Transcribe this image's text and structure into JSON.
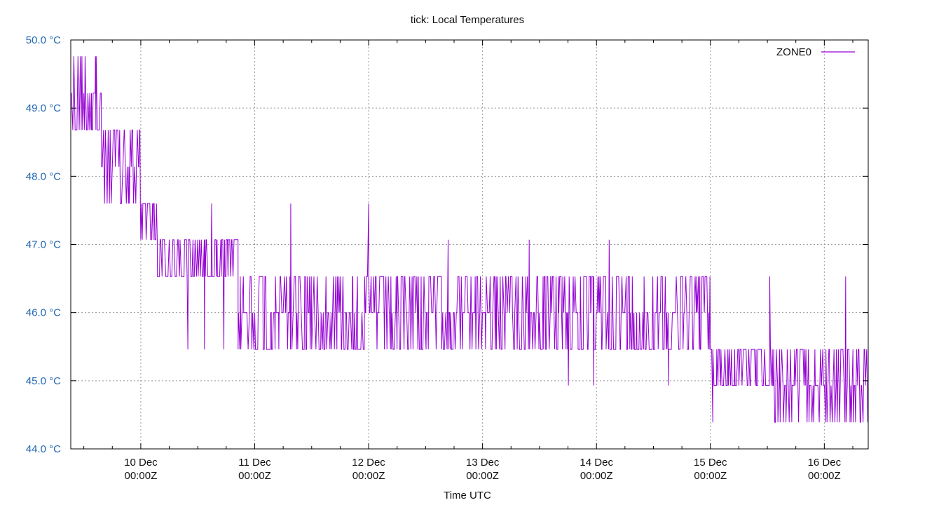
{
  "chart_data": {
    "type": "line",
    "title": "tick: Local Temperatures",
    "xlabel": "Time UTC",
    "ylabel": "",
    "xlim": [
      "9 Dec 09:15",
      "16 Dec 09:15"
    ],
    "ylim": [
      44.0,
      50.0
    ],
    "grid": true,
    "legend_placement": "top-right",
    "y_ticks": [
      "44.0 °C",
      "45.0 °C",
      "46.0 °C",
      "47.0 °C",
      "48.0 °C",
      "49.0 °C",
      "50.0 °C"
    ],
    "y_tick_values": [
      44,
      45,
      46,
      47,
      48,
      49,
      50
    ],
    "x_ticks": [
      {
        "date": "10 Dec",
        "time": "00:00Z"
      },
      {
        "date": "11 Dec",
        "time": "00:00Z"
      },
      {
        "date": "12 Dec",
        "time": "00:00Z"
      },
      {
        "date": "13 Dec",
        "time": "00:00Z"
      },
      {
        "date": "14 Dec",
        "time": "00:00Z"
      },
      {
        "date": "15 Dec",
        "time": "00:00Z"
      },
      {
        "date": "16 Dec",
        "time": "00:00Z"
      }
    ],
    "levels": [
      49.76,
      49.22,
      48.68,
      48.14,
      47.6,
      47.07,
      46.53,
      46.0,
      45.46,
      44.93,
      44.39
    ],
    "series": [
      {
        "name": "ZONE0",
        "color": "#9400d3",
        "bands": [
          {
            "from": "9 Dec 09:15",
            "to": "9 Dec 15:00",
            "low": 48.68,
            "high": 49.76
          },
          {
            "from": "9 Dec 15:00",
            "to": "9 Dec 15:45",
            "low": 48.68,
            "high": 49.22
          },
          {
            "from": "9 Dec 15:45",
            "to": "10 Dec 00:00",
            "low": 47.6,
            "high": 48.68
          },
          {
            "from": "10 Dec 00:00",
            "to": "10 Dec 03:30",
            "low": 47.07,
            "high": 47.6
          },
          {
            "from": "10 Dec 03:30",
            "to": "10 Dec 20:30",
            "low": 46.53,
            "high": 47.07
          },
          {
            "from": "10 Dec 20:30",
            "to": "13 Dec 13:25",
            "low": 45.46,
            "high": 46.53
          },
          {
            "from": "13 Dec 13:25",
            "to": "15 Dec 00:00",
            "low": 45.46,
            "high": 46.53
          },
          {
            "from": "15 Dec 00:00",
            "to": "15 Dec 13:20",
            "low": 44.93,
            "high": 45.46
          },
          {
            "from": "15 Dec 13:20",
            "to": "16 Dec 09:15",
            "low": 44.39,
            "high": 45.46
          }
        ],
        "spikes": [
          {
            "time": "10 Dec 09:55",
            "value": 45.46
          },
          {
            "time": "10 Dec 13:25",
            "value": 45.46
          },
          {
            "time": "10 Dec 14:55",
            "value": 47.6
          },
          {
            "time": "10 Dec 17:30",
            "value": 45.46
          },
          {
            "time": "11 Dec 07:35",
            "value": 47.6
          },
          {
            "time": "12 Dec 00:00",
            "value": 47.6
          },
          {
            "time": "12 Dec 16:45",
            "value": 47.07
          },
          {
            "time": "13 Dec 09:50",
            "value": 47.07
          },
          {
            "time": "13 Dec 18:05",
            "value": 44.93
          },
          {
            "time": "13 Dec 23:25",
            "value": 44.93
          },
          {
            "time": "14 Dec 02:40",
            "value": 47.07
          },
          {
            "time": "14 Dec 15:10",
            "value": 44.93
          },
          {
            "time": "15 Dec 00:30",
            "value": 44.39
          },
          {
            "time": "15 Dec 12:30",
            "value": 46.53
          },
          {
            "time": "16 Dec 04:30",
            "value": 46.53
          }
        ]
      }
    ]
  }
}
